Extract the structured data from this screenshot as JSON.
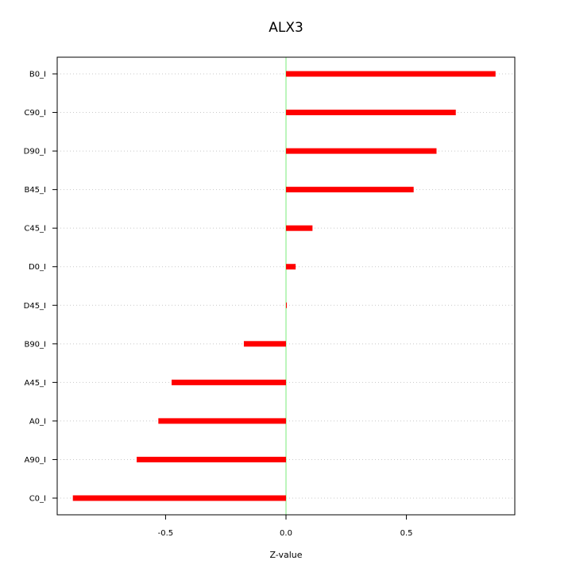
{
  "chart_data": {
    "type": "bar",
    "orientation": "horizontal",
    "title": "ALX3",
    "xlabel": "Z-value",
    "ylabel": "",
    "xlim": [
      -0.95,
      0.95
    ],
    "xticks": [
      -0.5,
      0.0,
      0.5
    ],
    "xtick_labels": [
      "-0.5",
      "0.0",
      "0.5"
    ],
    "grid": true,
    "bar_color": "#ff0000",
    "zero_line_color": "#90ee90",
    "grid_color": "#c8c8c8",
    "categories": [
      "B0_I",
      "C90_I",
      "D90_I",
      "B45_I",
      "C45_I",
      "D0_I",
      "D45_I",
      "B90_I",
      "A45_I",
      "A0_I",
      "A90_I",
      "C0_I"
    ],
    "values": [
      0.87,
      0.705,
      0.625,
      0.53,
      0.11,
      0.04,
      0.003,
      -0.175,
      -0.475,
      -0.53,
      -0.62,
      -0.885
    ]
  }
}
